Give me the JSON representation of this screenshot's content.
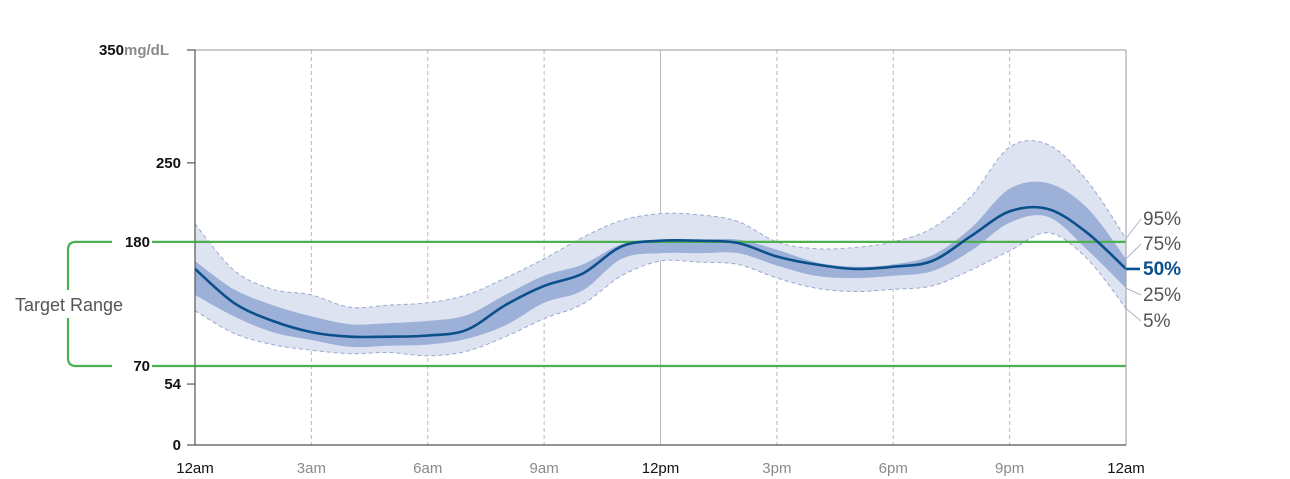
{
  "chart_data": {
    "type": "area",
    "title": "",
    "xlabel": "",
    "ylabel": "",
    "y_unit": "mg/dL",
    "ylim": [
      0,
      350
    ],
    "y_ticks": [
      {
        "value": 350,
        "label": "350"
      },
      {
        "value": 250,
        "label": "250"
      },
      {
        "value": 180,
        "label": "180"
      },
      {
        "value": 70,
        "label": "70"
      },
      {
        "value": 54,
        "label": "54"
      },
      {
        "value": 0,
        "label": "0"
      }
    ],
    "x_ticks": [
      {
        "hour": 0,
        "label": "12am",
        "emphasis": true,
        "grid": "none"
      },
      {
        "hour": 3,
        "label": "3am",
        "emphasis": false,
        "grid": "dashed"
      },
      {
        "hour": 6,
        "label": "6am",
        "emphasis": false,
        "grid": "dashed"
      },
      {
        "hour": 9,
        "label": "9am",
        "emphasis": false,
        "grid": "dashed"
      },
      {
        "hour": 12,
        "label": "12pm",
        "emphasis": true,
        "grid": "solid"
      },
      {
        "hour": 15,
        "label": "3pm",
        "emphasis": false,
        "grid": "dashed"
      },
      {
        "hour": 18,
        "label": "6pm",
        "emphasis": false,
        "grid": "dashed"
      },
      {
        "hour": 21,
        "label": "9pm",
        "emphasis": false,
        "grid": "dashed"
      },
      {
        "hour": 24,
        "label": "12am",
        "emphasis": true,
        "grid": "none"
      }
    ],
    "target_range": {
      "label": "Target Range",
      "low": 70,
      "high": 180,
      "color": "#4caf50"
    },
    "hours": [
      0,
      1,
      2,
      3,
      4,
      5,
      6,
      7,
      8,
      9,
      10,
      11,
      12,
      13,
      14,
      15,
      16,
      17,
      18,
      19,
      20,
      21,
      22,
      23,
      24
    ],
    "series": [
      {
        "name": "95%",
        "values": [
          196,
          155,
          138,
          133,
          122,
          124,
          126,
          133,
          148,
          165,
          184,
          199,
          205,
          204,
          198,
          180,
          174,
          175,
          180,
          192,
          220,
          264,
          266,
          234,
          183
        ]
      },
      {
        "name": "75%",
        "values": [
          163,
          138,
          124,
          114,
          107,
          108,
          110,
          115,
          133,
          150,
          160,
          178,
          182,
          182,
          182,
          173,
          162,
          158,
          160,
          168,
          192,
          227,
          232,
          210,
          165
        ]
      },
      {
        "name": "50%",
        "values": [
          156,
          126,
          110,
          100,
          96,
          96,
          97,
          102,
          124,
          141,
          152,
          176,
          181,
          181,
          179,
          167,
          160,
          156,
          158,
          163,
          185,
          207,
          209,
          188,
          156
        ]
      },
      {
        "name": "25%",
        "values": [
          133,
          114,
          100,
          93,
          87,
          88,
          89,
          94,
          106,
          126,
          137,
          165,
          170,
          170,
          170,
          159,
          150,
          148,
          150,
          154,
          172,
          197,
          202,
          173,
          139
        ]
      },
      {
        "name": "5%",
        "values": [
          119,
          99,
          89,
          84,
          81,
          82,
          79,
          83,
          96,
          112,
          125,
          150,
          163,
          162,
          160,
          148,
          139,
          136,
          138,
          141,
          155,
          172,
          188,
          165,
          121
        ]
      }
    ],
    "legend_placement": "right"
  },
  "colors": {
    "outer_band": "#dde3f0",
    "outer_band_edge": "#9aa8cf",
    "inner_band": "#9db0d8",
    "median": "#0b4f8b",
    "target": "#4caf50",
    "axis": "#999999",
    "grid": "#bbbbbb",
    "pct_label": "#555555",
    "tick_emphasis": "#111111",
    "tick_muted": "#8a8a8a"
  }
}
